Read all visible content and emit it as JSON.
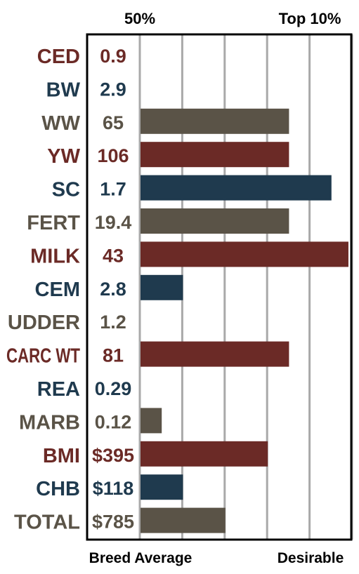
{
  "colors": {
    "maroon": "#6b2a26",
    "navy": "#1f3a4e",
    "taupe": "#5a5347",
    "gridline": "#a9a9a9",
    "frame": "#000000"
  },
  "chart_data": {
    "type": "bar",
    "orientation": "horizontal",
    "header_labels": {
      "left": "50%",
      "right": "Top 10%"
    },
    "footer_labels": {
      "left": "Breed Average",
      "right": "Desirable"
    },
    "scale": {
      "min": 0,
      "max": 5,
      "ticks": 5
    },
    "grid": true,
    "rows": [
      {
        "trait": "CED",
        "value": "0.9",
        "bar": 0,
        "color": "maroon"
      },
      {
        "trait": "BW",
        "value": "2.9",
        "bar": 0,
        "color": "navy"
      },
      {
        "trait": "WW",
        "value": "65",
        "bar": 3.5,
        "color": "taupe"
      },
      {
        "trait": "YW",
        "value": "106",
        "bar": 3.5,
        "color": "maroon"
      },
      {
        "trait": "SC",
        "value": "1.7",
        "bar": 4.5,
        "color": "navy"
      },
      {
        "trait": "FERT",
        "value": "19.4",
        "bar": 3.5,
        "color": "taupe"
      },
      {
        "trait": "MILK",
        "value": "43",
        "bar": 4.9,
        "color": "maroon"
      },
      {
        "trait": "CEM",
        "value": "2.8",
        "bar": 1.0,
        "color": "navy"
      },
      {
        "trait": "UDDER",
        "value": "1.2",
        "bar": 0,
        "color": "taupe"
      },
      {
        "trait": "CARC WT",
        "value": "81",
        "bar": 3.5,
        "color": "maroon"
      },
      {
        "trait": "REA",
        "value": "0.29",
        "bar": 0,
        "color": "navy"
      },
      {
        "trait": "MARB",
        "value": "0.12",
        "bar": 0.5,
        "color": "taupe"
      },
      {
        "trait": "BMI",
        "value": "$395",
        "bar": 3.0,
        "color": "maroon"
      },
      {
        "trait": "CHB",
        "value": "$118",
        "bar": 1.0,
        "color": "navy"
      },
      {
        "trait": "TOTAL",
        "value": "$785",
        "bar": 2.0,
        "color": "taupe"
      }
    ]
  }
}
